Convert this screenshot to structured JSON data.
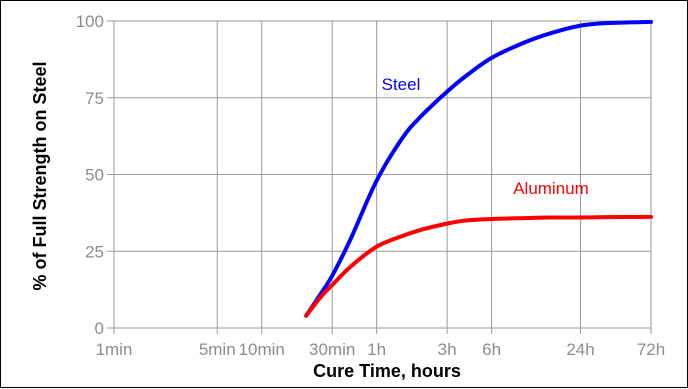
{
  "chart_data": {
    "type": "line",
    "title": "",
    "xlabel": "Cure Time, hours",
    "ylabel": "% of Full Strength on Steel",
    "x_scale": "log",
    "x_unit": "minutes",
    "xticks": [
      {
        "value": 1,
        "label": "1min"
      },
      {
        "value": 5,
        "label": "5min"
      },
      {
        "value": 10,
        "label": "10min"
      },
      {
        "value": 30,
        "label": "30min"
      },
      {
        "value": 60,
        "label": "1h"
      },
      {
        "value": 180,
        "label": "3h"
      },
      {
        "value": 360,
        "label": "6h"
      },
      {
        "value": 1440,
        "label": "24h"
      },
      {
        "value": 4320,
        "label": "72h"
      }
    ],
    "yticks": [
      0,
      25,
      50,
      75,
      100
    ],
    "ylim": [
      0,
      100
    ],
    "grid": true,
    "legend": "none",
    "series": [
      {
        "name": "Steel",
        "color": "#0000ff",
        "x": [
          20,
          25,
          30,
          40,
          60,
          90,
          120,
          180,
          240,
          360,
          600,
          900,
          1440,
          2160,
          4320
        ],
        "y": [
          4,
          11,
          17,
          29,
          48,
          62,
          69,
          77,
          82,
          88,
          93,
          96,
          98.5,
          99.3,
          99.7
        ]
      },
      {
        "name": "Aluminum",
        "color": "#ff0000",
        "x": [
          20,
          25,
          30,
          40,
          60,
          90,
          120,
          180,
          240,
          360,
          600,
          900,
          1440,
          2160,
          4320
        ],
        "y": [
          4,
          10,
          14,
          20,
          26.5,
          30,
          32,
          34,
          35,
          35.5,
          35.8,
          36,
          36,
          36.1,
          36.2
        ]
      }
    ]
  }
}
